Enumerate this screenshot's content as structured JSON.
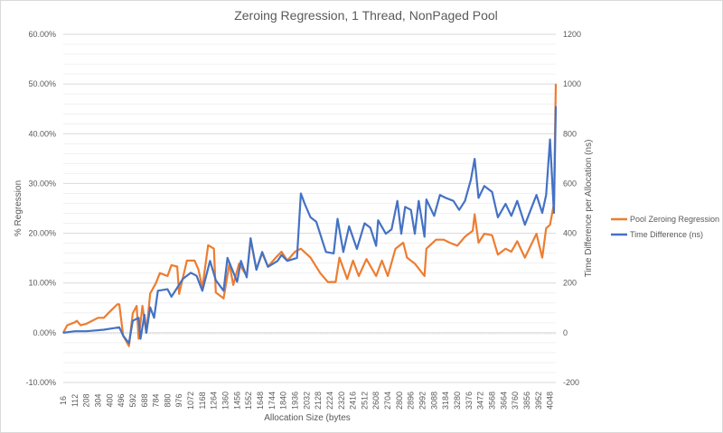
{
  "chart_data": {
    "type": "line",
    "title": "Zeroing Regression, 1 Thread, NonPaged Pool",
    "xlabel": "Allocation Size (bytes",
    "ylabel": "% Regression",
    "y2label": "Time Difference per Allocation (ns)",
    "ylim": [
      -10,
      60
    ],
    "y_ticks": [
      "-10.00%",
      "0.00%",
      "10.00%",
      "20.00%",
      "30.00%",
      "40.00%",
      "50.00%",
      "60.00%"
    ],
    "y2lim": [
      -200,
      1200
    ],
    "y2_ticks": [
      "-200",
      "0",
      "200",
      "400",
      "600",
      "800",
      "1000",
      "1200"
    ],
    "x_ticks": [
      "16",
      "112",
      "208",
      "304",
      "400",
      "496",
      "592",
      "688",
      "784",
      "880",
      "976",
      "1072",
      "1168",
      "1264",
      "1360",
      "1456",
      "1552",
      "1648",
      "1744",
      "1840",
      "1936",
      "2032",
      "2128",
      "2224",
      "2320",
      "2416",
      "2512",
      "2608",
      "2704",
      "2800",
      "2896",
      "2992",
      "3088",
      "3184",
      "3280",
      "3376",
      "3472",
      "3568",
      "3664",
      "3760",
      "3856",
      "3952",
      "4048"
    ],
    "xlim": [
      16,
      4096
    ],
    "grid": true,
    "legend_position": "right",
    "series": [
      {
        "name": "Pool Zeroing Regression",
        "axis": "left",
        "color": "#ED7D31",
        "points": [
          [
            16,
            0
          ],
          [
            48,
            1.5
          ],
          [
            112,
            2.1
          ],
          [
            128,
            2.4
          ],
          [
            160,
            1.5
          ],
          [
            208,
            1.8
          ],
          [
            304,
            3.0
          ],
          [
            352,
            3.0
          ],
          [
            400,
            4.2
          ],
          [
            464,
            5.7
          ],
          [
            480,
            5.7
          ],
          [
            512,
            -0.6
          ],
          [
            560,
            -2.7
          ],
          [
            592,
            3.9
          ],
          [
            624,
            5.4
          ],
          [
            640,
            -1.2
          ],
          [
            672,
            5.4
          ],
          [
            704,
            0
          ],
          [
            736,
            7.9
          ],
          [
            784,
            10.0
          ],
          [
            816,
            12.0
          ],
          [
            880,
            11.4
          ],
          [
            912,
            13.6
          ],
          [
            960,
            13.3
          ],
          [
            976,
            7.8
          ],
          [
            1040,
            14.5
          ],
          [
            1104,
            14.5
          ],
          [
            1136,
            12.7
          ],
          [
            1168,
            9.0
          ],
          [
            1216,
            17.6
          ],
          [
            1264,
            16.9
          ],
          [
            1280,
            8.1
          ],
          [
            1344,
            6.9
          ],
          [
            1392,
            13.9
          ],
          [
            1424,
            9.6
          ],
          [
            1472,
            13.9
          ],
          [
            1536,
            11.4
          ],
          [
            1568,
            18.7
          ],
          [
            1616,
            12.7
          ],
          [
            1664,
            16.0
          ],
          [
            1712,
            13.3
          ],
          [
            1776,
            15.1
          ],
          [
            1824,
            16.3
          ],
          [
            1872,
            14.5
          ],
          [
            1936,
            16.3
          ],
          [
            1984,
            16.9
          ],
          [
            2064,
            15.1
          ],
          [
            2144,
            12.0
          ],
          [
            2208,
            10.2
          ],
          [
            2272,
            10.2
          ],
          [
            2304,
            15.1
          ],
          [
            2368,
            10.8
          ],
          [
            2416,
            14.5
          ],
          [
            2464,
            11.4
          ],
          [
            2528,
            14.8
          ],
          [
            2608,
            11.4
          ],
          [
            2656,
            14.5
          ],
          [
            2704,
            11.4
          ],
          [
            2768,
            16.9
          ],
          [
            2832,
            18.1
          ],
          [
            2864,
            15.1
          ],
          [
            2928,
            13.9
          ],
          [
            3008,
            11.4
          ],
          [
            3024,
            16.9
          ],
          [
            3104,
            18.7
          ],
          [
            3168,
            18.7
          ],
          [
            3216,
            18.1
          ],
          [
            3280,
            17.5
          ],
          [
            3344,
            19.3
          ],
          [
            3408,
            20.5
          ],
          [
            3424,
            23.8
          ],
          [
            3456,
            18.1
          ],
          [
            3504,
            19.9
          ],
          [
            3568,
            19.6
          ],
          [
            3616,
            15.7
          ],
          [
            3680,
            16.9
          ],
          [
            3728,
            16.3
          ],
          [
            3776,
            18.4
          ],
          [
            3840,
            15.1
          ],
          [
            3888,
            17.5
          ],
          [
            3936,
            19.9
          ],
          [
            3984,
            15.1
          ],
          [
            4016,
            21.0
          ],
          [
            4048,
            21.7
          ],
          [
            4080,
            25.9
          ],
          [
            4096,
            50
          ]
        ]
      },
      {
        "name": "Time Difference (ns)",
        "axis": "right",
        "color": "#4472C4",
        "points": [
          [
            16,
            0
          ],
          [
            112,
            6
          ],
          [
            208,
            6
          ],
          [
            352,
            12
          ],
          [
            480,
            22
          ],
          [
            512,
            -12
          ],
          [
            560,
            -42
          ],
          [
            592,
            48
          ],
          [
            640,
            60
          ],
          [
            656,
            -24
          ],
          [
            688,
            72
          ],
          [
            704,
            0
          ],
          [
            736,
            102
          ],
          [
            768,
            60
          ],
          [
            800,
            169
          ],
          [
            880,
            175
          ],
          [
            912,
            145
          ],
          [
            960,
            181
          ],
          [
            1008,
            217
          ],
          [
            1072,
            241
          ],
          [
            1120,
            229
          ],
          [
            1168,
            169
          ],
          [
            1232,
            289
          ],
          [
            1280,
            211
          ],
          [
            1344,
            169
          ],
          [
            1376,
            301
          ],
          [
            1456,
            205
          ],
          [
            1488,
            289
          ],
          [
            1536,
            223
          ],
          [
            1568,
            380
          ],
          [
            1616,
            253
          ],
          [
            1664,
            325
          ],
          [
            1712,
            265
          ],
          [
            1792,
            289
          ],
          [
            1824,
            313
          ],
          [
            1872,
            289
          ],
          [
            1952,
            301
          ],
          [
            1984,
            560
          ],
          [
            2016,
            518
          ],
          [
            2064,
            464
          ],
          [
            2112,
            446
          ],
          [
            2176,
            349
          ],
          [
            2192,
            325
          ],
          [
            2256,
            319
          ],
          [
            2288,
            458
          ],
          [
            2336,
            325
          ],
          [
            2384,
            428
          ],
          [
            2448,
            337
          ],
          [
            2512,
            440
          ],
          [
            2560,
            422
          ],
          [
            2608,
            349
          ],
          [
            2624,
            452
          ],
          [
            2688,
            398
          ],
          [
            2736,
            416
          ],
          [
            2784,
            530
          ],
          [
            2816,
            398
          ],
          [
            2848,
            506
          ],
          [
            2896,
            494
          ],
          [
            2928,
            398
          ],
          [
            2960,
            530
          ],
          [
            3008,
            386
          ],
          [
            3024,
            536
          ],
          [
            3088,
            470
          ],
          [
            3136,
            554
          ],
          [
            3184,
            542
          ],
          [
            3248,
            530
          ],
          [
            3296,
            494
          ],
          [
            3344,
            530
          ],
          [
            3392,
            615
          ],
          [
            3424,
            699
          ],
          [
            3456,
            542
          ],
          [
            3504,
            590
          ],
          [
            3568,
            566
          ],
          [
            3616,
            464
          ],
          [
            3680,
            518
          ],
          [
            3728,
            470
          ],
          [
            3776,
            530
          ],
          [
            3840,
            434
          ],
          [
            3888,
            494
          ],
          [
            3936,
            554
          ],
          [
            3984,
            482
          ],
          [
            4016,
            554
          ],
          [
            4048,
            777
          ],
          [
            4080,
            482
          ],
          [
            4096,
            910
          ]
        ]
      }
    ]
  }
}
